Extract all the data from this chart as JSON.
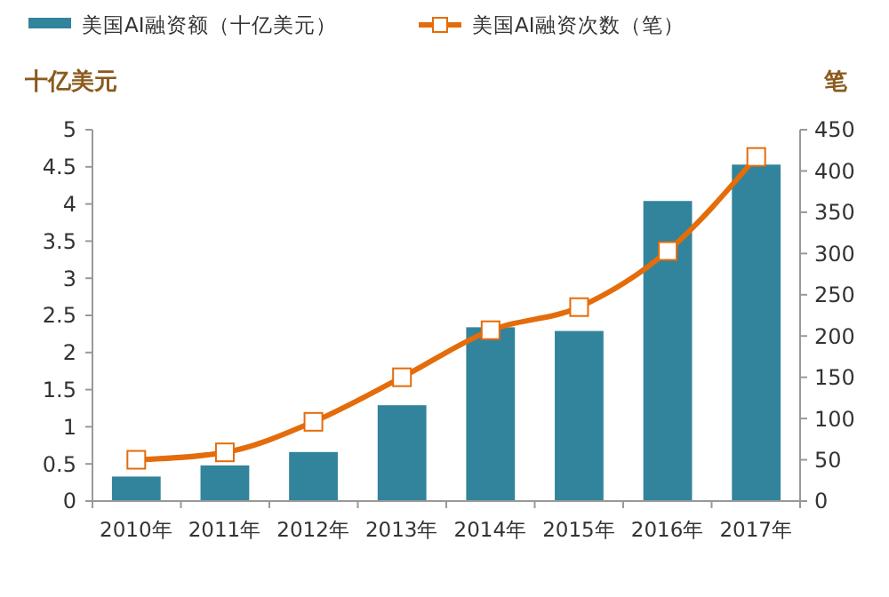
{
  "chart_data": {
    "type": "bar",
    "ylabel": "十亿美元",
    "y2label": "笔",
    "categories": [
      "2010年",
      "2011年",
      "2012年",
      "2013年",
      "2014年",
      "2015年",
      "2016年",
      "2017年"
    ],
    "series": [
      {
        "name": "美国AI融资额（十亿美元）",
        "color": "#31849b",
        "values": [
          0.33,
          0.48,
          0.66,
          1.29,
          2.34,
          2.29,
          4.04,
          4.53
        ]
      },
      {
        "name": "美国AI融资次数（笔）",
        "type": "line",
        "axis": "y2",
        "color": "#e46c0a",
        "marker": "square",
        "values": [
          50,
          59,
          96,
          150,
          207,
          235,
          303,
          417
        ]
      }
    ],
    "ylim": [
      0,
      5
    ],
    "yticks": [
      0,
      0.5,
      1,
      1.5,
      2,
      2.5,
      3,
      3.5,
      4,
      4.5,
      5
    ],
    "y2lim": [
      0,
      450
    ],
    "y2ticks": [
      0,
      50,
      100,
      150,
      200,
      250,
      300,
      350,
      400,
      450
    ],
    "legend": "top",
    "grid": false
  }
}
